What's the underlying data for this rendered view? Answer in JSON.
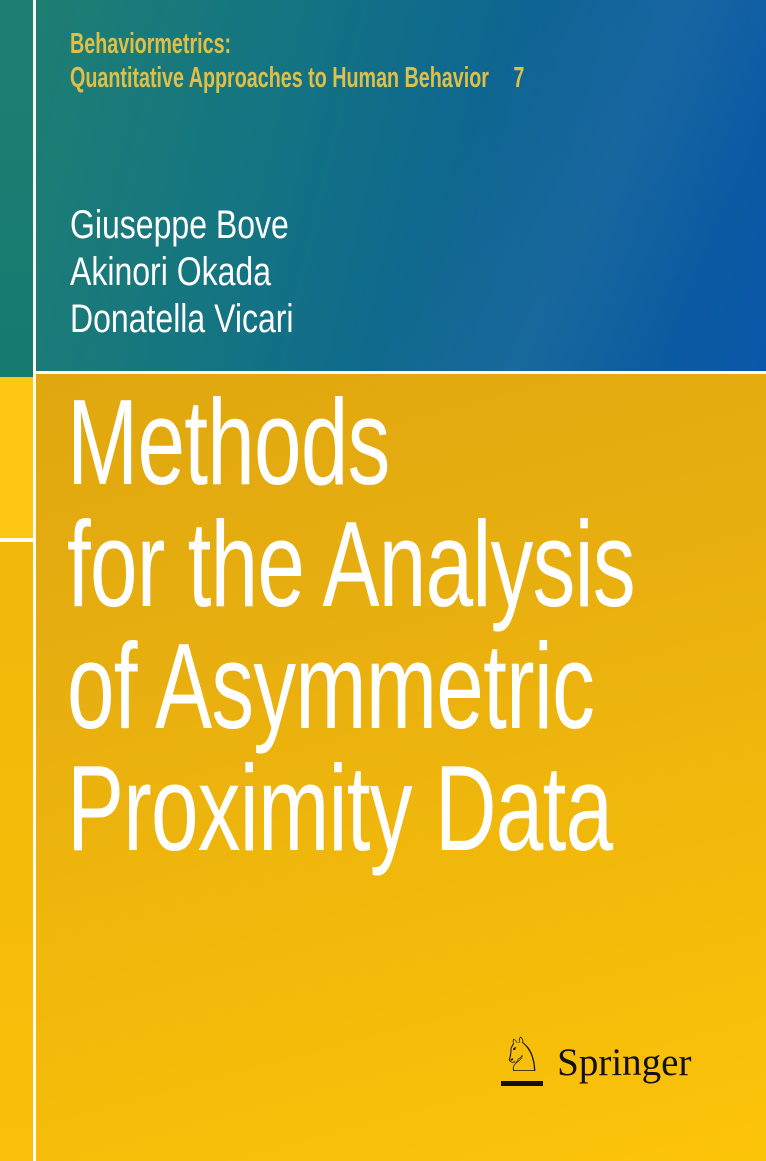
{
  "series": {
    "line1": "Behaviormetrics:",
    "line2": "Quantitative Approaches to Human Behavior",
    "volume": "7"
  },
  "authors": [
    "Giuseppe Bove",
    "Akinori Okada",
    "Donatella Vicari"
  ],
  "title": {
    "lines": [
      "Methods",
      "for the Analysis",
      "of Asymmetric",
      "Proximity Data"
    ]
  },
  "publisher": {
    "name": "Springer",
    "logo_icon": "springer-horse-icon",
    "horse_glyph": "♘"
  },
  "colors": {
    "band_teal": "#1e7e73",
    "band_blue": "#0a57a8",
    "gold_top": "#e0a70f",
    "gold_bottom": "#fcc409",
    "strip_yellow": "#fdc713",
    "divider_white": "#fdfcf0",
    "series_text": "#dfbf47",
    "author_text": "#ffffff",
    "title_text": "#ffffff",
    "logo_black": "#111111"
  }
}
